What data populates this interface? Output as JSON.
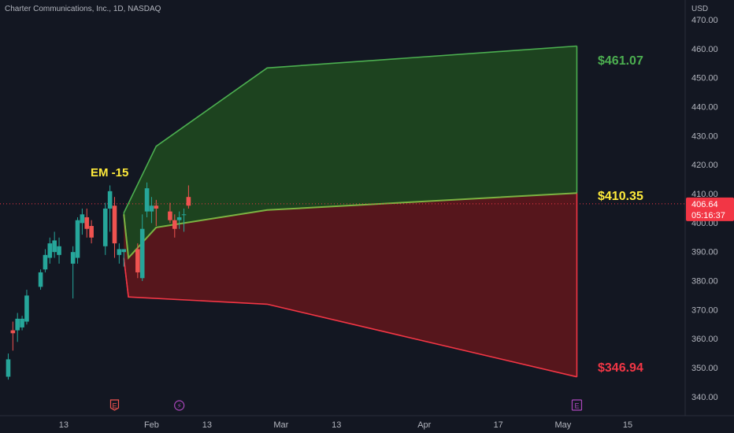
{
  "header": {
    "symbol_title": "Charter Communications, Inc., 1D, NASDAQ",
    "currency": "USD"
  },
  "colors": {
    "background": "#131722",
    "up_candle": "#26a69a",
    "down_candle": "#ef5350",
    "upper_fill": "#1e4620",
    "upper_border": "#4caf50",
    "lower_fill": "#5a161c",
    "lower_border": "#f23645",
    "mid_line": "#7cb342",
    "label_yellow": "#ffeb3b",
    "price_line": "#f23645"
  },
  "chart_data": {
    "type": "candlestick",
    "title": "Charter Communications, Inc., 1D, NASDAQ",
    "ylabel": "USD",
    "ylim": [
      336,
      476
    ],
    "grid": false,
    "y_ticks": [
      340,
      350,
      360,
      370,
      380,
      390,
      400,
      410,
      420,
      430,
      440,
      450,
      460,
      470
    ],
    "x_ticks": [
      {
        "label": "13",
        "day": 13
      },
      {
        "label": "Feb",
        "day": 32
      },
      {
        "label": "13",
        "day": 44
      },
      {
        "label": "Mar",
        "day": 60
      },
      {
        "label": "13",
        "day": 72
      },
      {
        "label": "Apr",
        "day": 91
      },
      {
        "label": "17",
        "day": 107
      },
      {
        "label": "May",
        "day": 121
      },
      {
        "label": "15",
        "day": 135
      }
    ],
    "candles": [
      {
        "day": 1,
        "o": 347,
        "h": 355,
        "l": 346,
        "c": 353
      },
      {
        "day": 2,
        "o": 363,
        "h": 366,
        "l": 356,
        "c": 362
      },
      {
        "day": 3,
        "o": 363,
        "h": 369,
        "l": 359,
        "c": 367
      },
      {
        "day": 4,
        "o": 364,
        "h": 368,
        "l": 363,
        "c": 367
      },
      {
        "day": 5,
        "o": 366,
        "h": 377,
        "l": 365,
        "c": 375
      },
      {
        "day": 8,
        "o": 378,
        "h": 384,
        "l": 377,
        "c": 383
      },
      {
        "day": 9,
        "o": 384,
        "h": 391,
        "l": 383,
        "c": 389
      },
      {
        "day": 10,
        "o": 388,
        "h": 395,
        "l": 386,
        "c": 393
      },
      {
        "day": 11,
        "o": 390,
        "h": 397,
        "l": 388,
        "c": 394
      },
      {
        "day": 12,
        "o": 389,
        "h": 395,
        "l": 386,
        "c": 392
      },
      {
        "day": 15,
        "o": 386,
        "h": 392,
        "l": 374,
        "c": 390
      },
      {
        "day": 16,
        "o": 388,
        "h": 402,
        "l": 386,
        "c": 401
      },
      {
        "day": 17,
        "o": 400,
        "h": 405,
        "l": 396,
        "c": 403
      },
      {
        "day": 18,
        "o": 402,
        "h": 405,
        "l": 395,
        "c": 398
      },
      {
        "day": 19,
        "o": 399,
        "h": 401,
        "l": 393,
        "c": 395
      },
      {
        "day": 22,
        "o": 392,
        "h": 407,
        "l": 389,
        "c": 405
      },
      {
        "day": 23,
        "o": 405,
        "h": 413,
        "l": 397,
        "c": 411
      },
      {
        "day": 24,
        "o": 406,
        "h": 409,
        "l": 388,
        "c": 393
      },
      {
        "day": 25,
        "o": 389,
        "h": 393,
        "l": 386,
        "c": 391
      },
      {
        "day": 26,
        "o": 390,
        "h": 391,
        "l": 385,
        "c": 391
      },
      {
        "day": 29,
        "o": 391,
        "h": 393,
        "l": 381,
        "c": 383
      },
      {
        "day": 30,
        "o": 381,
        "h": 403,
        "l": 380,
        "c": 398
      },
      {
        "day": 31,
        "o": 404,
        "h": 414,
        "l": 402,
        "c": 412
      },
      {
        "day": 32,
        "o": 404,
        "h": 409,
        "l": 400,
        "c": 406
      },
      {
        "day": 33,
        "o": 406,
        "h": 408,
        "l": 399,
        "c": 405
      },
      {
        "day": 36,
        "o": 404,
        "h": 407,
        "l": 400,
        "c": 401
      },
      {
        "day": 37,
        "o": 401,
        "h": 403,
        "l": 395,
        "c": 398
      },
      {
        "day": 38,
        "o": 401,
        "h": 404,
        "l": 398,
        "c": 402
      },
      {
        "day": 39,
        "o": 403,
        "h": 405,
        "l": 397,
        "c": 403
      },
      {
        "day": 40,
        "o": 409,
        "h": 413,
        "l": 405,
        "c": 406
      }
    ],
    "expected_move": {
      "label": "EM -15",
      "upper": [
        {
          "day": 26,
          "v": 403.5
        },
        {
          "day": 33,
          "v": 426.5
        },
        {
          "day": 57,
          "v": 453.5
        },
        {
          "day": 124,
          "v": 461.07
        }
      ],
      "middle": [
        {
          "day": 26,
          "v": 403
        },
        {
          "day": 27,
          "v": 388
        },
        {
          "day": 33,
          "v": 398.5
        },
        {
          "day": 57,
          "v": 404.5
        },
        {
          "day": 124,
          "v": 410.35
        }
      ],
      "lower": [
        {
          "day": 26,
          "v": 388
        },
        {
          "day": 27,
          "v": 374.5
        },
        {
          "day": 57,
          "v": 372
        },
        {
          "day": 124,
          "v": 346.94
        }
      ],
      "upper_label": "$461.07",
      "middle_label": "$410.35",
      "lower_label": "$346.94"
    },
    "last_price": {
      "value": 406.64,
      "label": "406.64",
      "countdown": "05:16:37"
    },
    "markers": [
      {
        "day": 24,
        "letter": "E",
        "kind": "earnings",
        "color": "#ef5350"
      },
      {
        "day": 38,
        "letter": "⚡",
        "kind": "dividend",
        "color": "#ab47bc"
      },
      {
        "day": 124,
        "letter": "E",
        "kind": "earnings-upcoming",
        "color": "#ab47bc"
      }
    ]
  }
}
